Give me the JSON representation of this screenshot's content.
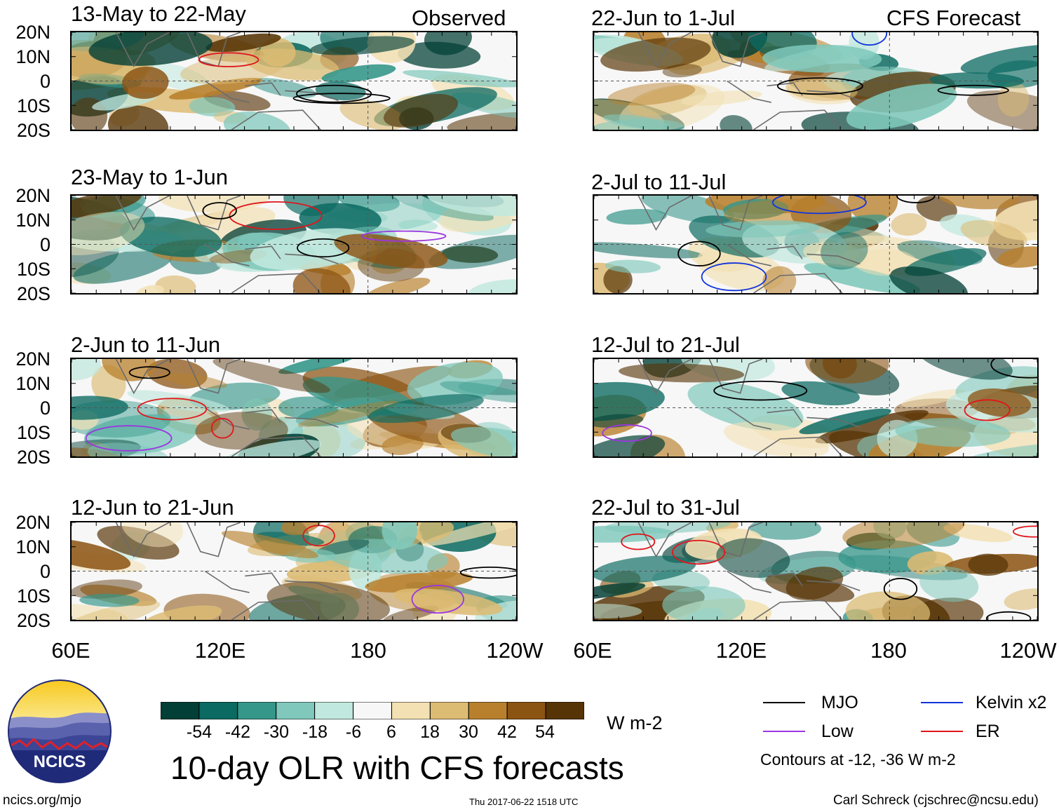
{
  "chart_data": [
    {
      "type": "heatmap",
      "variable": "10-day OLR anomaly",
      "kind": "Observed",
      "title": "13-May to 22-May",
      "corner_label": "Observed",
      "xlabel": "",
      "ylabel": "",
      "x_ticks": [
        "60E",
        "120E",
        "180",
        "120W"
      ],
      "y_ticks": [
        "20N",
        "10N",
        "0",
        "10S",
        "20S"
      ],
      "xlim_deg_east": [
        60,
        240
      ],
      "ylim_deg": [
        -20,
        20
      ]
    },
    {
      "type": "heatmap",
      "variable": "10-day OLR anomaly",
      "kind": "Observed",
      "title": "23-May to 1-Jun",
      "x_ticks": [
        "60E",
        "120E",
        "180",
        "120W"
      ],
      "y_ticks": [
        "20N",
        "10N",
        "0",
        "10S",
        "20S"
      ],
      "xlim_deg_east": [
        60,
        240
      ],
      "ylim_deg": [
        -20,
        20
      ]
    },
    {
      "type": "heatmap",
      "variable": "10-day OLR anomaly",
      "kind": "Observed",
      "title": "2-Jun to 11-Jun",
      "x_ticks": [
        "60E",
        "120E",
        "180",
        "120W"
      ],
      "y_ticks": [
        "20N",
        "10N",
        "0",
        "10S",
        "20S"
      ],
      "xlim_deg_east": [
        60,
        240
      ],
      "ylim_deg": [
        -20,
        20
      ]
    },
    {
      "type": "heatmap",
      "variable": "10-day OLR anomaly",
      "kind": "Observed",
      "title": "12-Jun to 21-Jun",
      "x_ticks": [
        "60E",
        "120E",
        "180",
        "120W"
      ],
      "y_ticks": [
        "20N",
        "10N",
        "0",
        "10S",
        "20S"
      ],
      "xlim_deg_east": [
        60,
        240
      ],
      "ylim_deg": [
        -20,
        20
      ]
    },
    {
      "type": "heatmap",
      "variable": "10-day OLR anomaly",
      "kind": "CFS Forecast",
      "title": "22-Jun to 1-Jul",
      "corner_label": "CFS Forecast",
      "x_ticks": [
        "60E",
        "120E",
        "180",
        "120W"
      ],
      "xlim_deg_east": [
        60,
        240
      ],
      "ylim_deg": [
        -20,
        20
      ]
    },
    {
      "type": "heatmap",
      "variable": "10-day OLR anomaly",
      "kind": "CFS Forecast",
      "title": "2-Jul to 11-Jul",
      "x_ticks": [
        "60E",
        "120E",
        "180",
        "120W"
      ],
      "xlim_deg_east": [
        60,
        240
      ],
      "ylim_deg": [
        -20,
        20
      ]
    },
    {
      "type": "heatmap",
      "variable": "10-day OLR anomaly",
      "kind": "CFS Forecast",
      "title": "12-Jul to 21-Jul",
      "x_ticks": [
        "60E",
        "120E",
        "180",
        "120W"
      ],
      "xlim_deg_east": [
        60,
        240
      ],
      "ylim_deg": [
        -20,
        20
      ]
    },
    {
      "type": "heatmap",
      "variable": "10-day OLR anomaly",
      "kind": "CFS Forecast",
      "title": "22-Jul to 31-Jul",
      "x_ticks": [
        "60E",
        "120E",
        "180",
        "120W"
      ],
      "xlim_deg_east": [
        60,
        240
      ],
      "ylim_deg": [
        -20,
        20
      ]
    }
  ],
  "panels": [
    {
      "title": "13-May to 22-May",
      "corner": "Observed"
    },
    {
      "title": "23-May to 1-Jun",
      "corner": ""
    },
    {
      "title": "2-Jun to 11-Jun",
      "corner": ""
    },
    {
      "title": "12-Jun to 21-Jun",
      "corner": ""
    },
    {
      "title": "22-Jun to 1-Jul",
      "corner": "CFS Forecast"
    },
    {
      "title": "2-Jul to 11-Jul",
      "corner": ""
    },
    {
      "title": "12-Jul to 21-Jul",
      "corner": ""
    },
    {
      "title": "22-Jul to 31-Jul",
      "corner": ""
    }
  ],
  "axes": {
    "lat_labels": [
      "20N",
      "10N",
      "0",
      "10S",
      "20S"
    ],
    "lon_labels": [
      "60E",
      "120E",
      "180",
      "120W"
    ]
  },
  "colorbar": {
    "labels": [
      "-54",
      "-42",
      "-30",
      "-18",
      "-6",
      "6",
      "18",
      "30",
      "42",
      "54"
    ],
    "colors": [
      "#023f36",
      "#0b6a61",
      "#35968a",
      "#7fc8bb",
      "#c1e8de",
      "#f7f7f7",
      "#f3e1b4",
      "#dcbb73",
      "#b8802c",
      "#8c5413",
      "#573406"
    ],
    "units": "W m-2"
  },
  "legend": {
    "items": [
      {
        "label": "MJO",
        "color": "#000000"
      },
      {
        "label": "Kelvin x2",
        "color": "#1034dd"
      },
      {
        "label": "Low",
        "color": "#9b36e0"
      },
      {
        "label": "ER",
        "color": "#e0151b"
      }
    ],
    "note": "Contours at -12, -36 W m-2"
  },
  "main_title": "10-day OLR with CFS forecasts",
  "logo": {
    "text": "NCICS"
  },
  "footer": {
    "url": "ncics.org/mjo",
    "timestamp": "Thu 2017-06-22 1518 UTC",
    "author": "Carl Schreck (cjschrec@ncsu.edu)"
  }
}
